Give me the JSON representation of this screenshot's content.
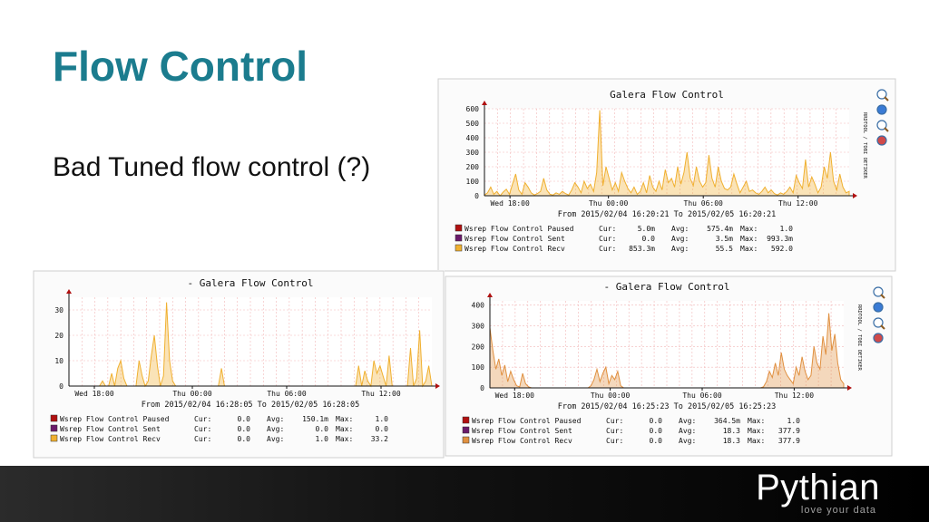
{
  "slide": {
    "title": "Flow Control",
    "subtitle": "Bad Tuned flow control (?)",
    "logo_text": "Pythian",
    "logo_tagline": "love your data"
  },
  "colors": {
    "title": "#1b7c8e",
    "paused": "#b01010",
    "sent": "#6a1a6a",
    "recv": "#f0b030",
    "recv_br": "#e09040",
    "grid": "#f2b8b8"
  },
  "chart_data": [
    {
      "type": "area",
      "title": "Galera Flow Control",
      "range_label": "From 2015/02/04 16:20:21 To 2015/02/05 16:20:21",
      "side_label": "RRDTOOL / TOBI OETIKER",
      "ylim": [
        0,
        600
      ],
      "yticks": [
        "0",
        "100",
        "200",
        "300",
        "400",
        "500",
        "600"
      ],
      "yticks_values": [
        0,
        100,
        200,
        300,
        400,
        500,
        600
      ],
      "xticks": [
        "Wed 18:00",
        "Thu 00:00",
        "Thu 06:00",
        "Thu 12:00"
      ],
      "xticks_pos": [
        0.07,
        0.34,
        0.6,
        0.86
      ],
      "series": [
        {
          "name": "Wsrep Flow Control Paused",
          "cur": "5.0m",
          "avg": "575.4m",
          "max": "1.0"
        },
        {
          "name": "Wsrep Flow Control Sent",
          "cur": "0.0",
          "avg": "3.5m",
          "max": "993.3m"
        },
        {
          "name": "Wsrep Flow Control Recv",
          "cur": "853.3m",
          "avg": "55.5",
          "max": "592.0",
          "values": [
            5,
            20,
            60,
            10,
            30,
            0,
            25,
            45,
            10,
            80,
            150,
            40,
            10,
            90,
            60,
            20,
            5,
            15,
            30,
            120,
            40,
            10,
            5,
            20,
            10,
            30,
            15,
            5,
            40,
            90,
            60,
            20,
            100,
            50,
            80,
            30,
            160,
            590,
            70,
            200,
            120,
            40,
            90,
            30,
            160,
            100,
            50,
            20,
            60,
            10,
            30,
            90,
            20,
            140,
            60,
            30,
            100,
            40,
            180,
            90,
            120,
            60,
            200,
            80,
            160,
            300,
            120,
            70,
            200,
            100,
            60,
            90,
            280,
            120,
            60,
            200,
            100,
            50,
            40,
            60,
            150,
            80,
            20,
            60,
            100,
            30,
            40,
            20,
            10,
            30,
            60,
            20,
            40,
            15,
            5,
            20,
            10,
            30,
            60,
            20,
            140,
            90,
            50,
            250,
            60,
            130,
            80,
            20,
            60,
            200,
            120,
            300,
            100,
            40,
            150,
            60,
            20,
            30
          ]
        }
      ],
      "stat_labels": {
        "cur": "Cur:",
        "avg": "Avg:",
        "max": "Max:"
      }
    },
    {
      "type": "area",
      "title": "- Galera Flow Control",
      "range_label": "From 2015/02/04 16:28:05 To 2015/02/05 16:28:05",
      "side_label": "RRDTOOL / TOBI OETIKER",
      "ylim": [
        0,
        35
      ],
      "yticks": [
        "0",
        "10",
        "20",
        "30"
      ],
      "yticks_values": [
        0,
        10,
        20,
        30
      ],
      "xticks": [
        "Wed 18:00",
        "Thu 00:00",
        "Thu 06:00",
        "Thu 12:00"
      ],
      "xticks_pos": [
        0.07,
        0.34,
        0.6,
        0.86
      ],
      "series": [
        {
          "name": "Wsrep Flow Control Paused",
          "cur": "0.0",
          "avg": "150.1m",
          "max": "1.0"
        },
        {
          "name": "Wsrep Flow Control Sent",
          "cur": "0.0",
          "avg": "0.0",
          "max": "0.0"
        },
        {
          "name": "Wsrep Flow Control Recv",
          "cur": "0.0",
          "avg": "1.0",
          "max": "33.2",
          "values": [
            0,
            0,
            0,
            0,
            0,
            0,
            0,
            0,
            0,
            0,
            0,
            2,
            0,
            0,
            5,
            0,
            7,
            10,
            3,
            0,
            0,
            0,
            0,
            10,
            4,
            0,
            2,
            12,
            20,
            8,
            0,
            4,
            33,
            10,
            2,
            0,
            0,
            0,
            0,
            0,
            0,
            0,
            0,
            0,
            0,
            0,
            0,
            0,
            0,
            0,
            7,
            0,
            0,
            0,
            0,
            0,
            0,
            0,
            0,
            0,
            0,
            0,
            0,
            0,
            0,
            0,
            0,
            0,
            0,
            0,
            0,
            0,
            0,
            0,
            0,
            0,
            0,
            0,
            0,
            0,
            0,
            0,
            0,
            0,
            0,
            0,
            0,
            0,
            0,
            0,
            0,
            0,
            0,
            0,
            0,
            8,
            0,
            6,
            2,
            0,
            10,
            5,
            8,
            4,
            0,
            12,
            0,
            0,
            0,
            0,
            0,
            0,
            15,
            0,
            3,
            22,
            0,
            2,
            8,
            0
          ]
        }
      ],
      "stat_labels": {
        "cur": "Cur:",
        "avg": "Avg:",
        "max": "Max:"
      }
    },
    {
      "type": "area",
      "title": "- Galera Flow Control",
      "range_label": "From 2015/02/04 16:25:23 To 2015/02/05 16:25:23",
      "side_label": "RRDTOOL / TOBI OETIKER",
      "ylim": [
        0,
        420
      ],
      "yticks": [
        "0",
        "100",
        "200",
        "300",
        "400"
      ],
      "yticks_values": [
        0,
        100,
        200,
        300,
        400
      ],
      "xticks": [
        "Wed 18:00",
        "Thu 00:00",
        "Thu 06:00",
        "Thu 12:00"
      ],
      "xticks_pos": [
        0.07,
        0.34,
        0.6,
        0.86
      ],
      "series": [
        {
          "name": "Wsrep Flow Control Paused",
          "cur": "0.0",
          "avg": "364.5m",
          "max": "1.0"
        },
        {
          "name": "Wsrep Flow Control Sent",
          "cur": "0.0",
          "avg": "18.3",
          "max": "377.9"
        },
        {
          "name": "Wsrep Flow Control Recv",
          "cur": "0.0",
          "avg": "18.3",
          "max": "377.9",
          "values": [
            290,
            180,
            90,
            140,
            60,
            110,
            30,
            80,
            40,
            10,
            5,
            70,
            20,
            5,
            0,
            0,
            0,
            0,
            0,
            0,
            0,
            0,
            0,
            0,
            0,
            0,
            0,
            0,
            0,
            0,
            0,
            0,
            0,
            0,
            10,
            40,
            90,
            30,
            70,
            100,
            20,
            60,
            40,
            80,
            10,
            0,
            0,
            0,
            0,
            0,
            0,
            0,
            0,
            0,
            0,
            0,
            0,
            0,
            0,
            0,
            0,
            0,
            0,
            0,
            0,
            0,
            0,
            0,
            0,
            0,
            0,
            0,
            0,
            0,
            0,
            0,
            0,
            0,
            0,
            0,
            0,
            0,
            0,
            0,
            0,
            0,
            0,
            0,
            0,
            0,
            0,
            0,
            5,
            30,
            80,
            50,
            120,
            60,
            170,
            90,
            60,
            40,
            20,
            100,
            60,
            150,
            80,
            40,
            60,
            200,
            120,
            90,
            250,
            160,
            360,
            180,
            260,
            120,
            40,
            20
          ]
        }
      ],
      "stat_labels": {
        "cur": "Cur:",
        "avg": "Avg:",
        "max": "Max:"
      }
    }
  ]
}
